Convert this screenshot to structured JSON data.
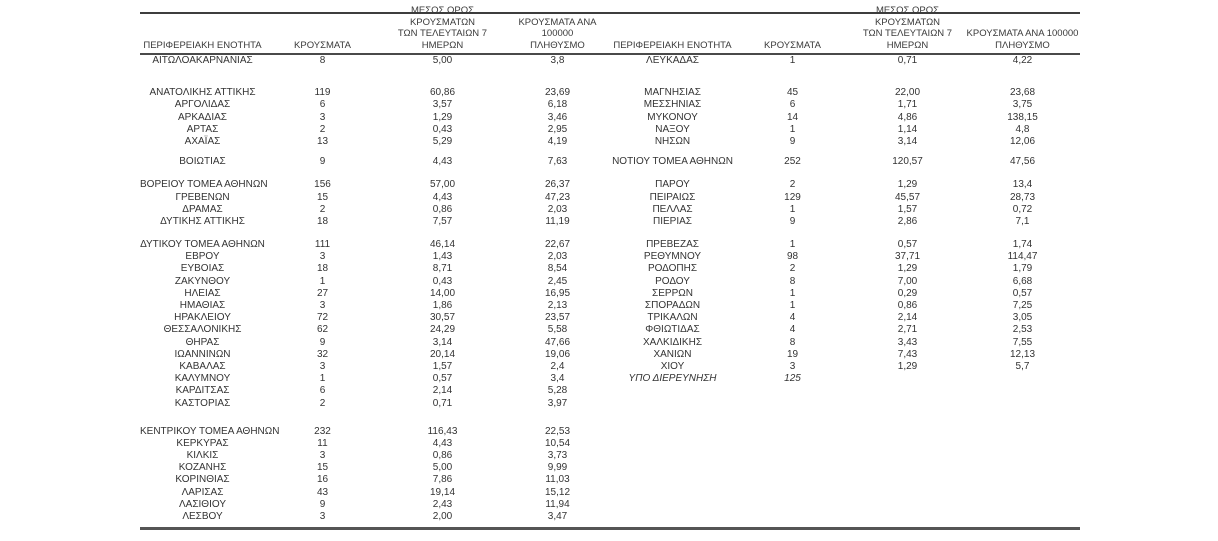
{
  "page": {
    "background": "#ffffff"
  },
  "table": {
    "colors": {
      "text": "#333333",
      "rule_top": "#3d3d3d",
      "rule_header": "#4a4a4a",
      "rule_bottom": "#555555"
    },
    "headers": {
      "region": "ΠΕΡΙΦΕΡΕΙΑΚΗ ΕΝΟΤΗΤΑ",
      "cases": "ΚΡΟΥΣΜΑΤΑ",
      "avg7": "ΜΕΣΟΣ ΟΡΟΣ ΚΡΟΥΣΜΑΤΩΝ\nΤΩΝ ΤΕΛΕΥΤΑΙΩΝ 7\nΗΜΕΡΩΝ",
      "per100k": "ΚΡΟΥΣΜΑΤΑ ΑΝΑ 100000\nΠΛΗΘΥΣΜΟ"
    },
    "rows": [
      {
        "left": [
          "ΑΙΤΩΛΟΑΚΑΡΝΑΝΙΑΣ",
          "8",
          "5,00",
          "3,8"
        ],
        "right": [
          "ΛΕΥΚΑΔΑΣ",
          "1",
          "0,71",
          "4,22"
        ]
      },
      {
        "gap": 20
      },
      {
        "left": [
          "ΑΝΑΤΟΛΙΚΗΣ ΑΤΤΙΚΗΣ",
          "119",
          "60,86",
          "23,69"
        ],
        "right": [
          "ΜΑΓΝΗΣΙΑΣ",
          "45",
          "22,00",
          "23,68"
        ]
      },
      {
        "left": [
          "ΑΡΓΟΛΙΔΑΣ",
          "6",
          "3,57",
          "6,18"
        ],
        "right": [
          "ΜΕΣΣΗΝΙΑΣ",
          "6",
          "1,71",
          "3,75"
        ]
      },
      {
        "left": [
          "ΑΡΚΑΔΙΑΣ",
          "3",
          "1,29",
          "3,46"
        ],
        "right": [
          "ΜΥΚΟΝΟΥ",
          "14",
          "4,86",
          "138,15"
        ]
      },
      {
        "left": [
          "ΑΡΤΑΣ",
          "2",
          "0,43",
          "2,95"
        ],
        "right": [
          "ΝΑΞΟΥ",
          "1",
          "1,14",
          "4,8"
        ]
      },
      {
        "left": [
          "ΑΧΑΪΑΣ",
          "13",
          "5,29",
          "4,19"
        ],
        "right": [
          "ΝΗΣΩΝ",
          "9",
          "3,14",
          "12,06"
        ]
      },
      {
        "gap": 8
      },
      {
        "left": [
          "ΒΟΙΩΤΙΑΣ",
          "9",
          "4,43",
          "7,63"
        ],
        "right": [
          "ΝΟΤΙΟΥ ΤΟΜΕΑ ΑΘΗΝΩΝ",
          "252",
          "120,57",
          "47,56"
        ]
      },
      {
        "gap": 11
      },
      {
        "left": [
          "ΒΟΡΕΙΟΥ ΤΟΜΕΑ ΑΘΗΝΩΝ",
          "156",
          "57,00",
          "26,37"
        ],
        "right": [
          "ΠΑΡΟΥ",
          "2",
          "1,29",
          "13,4"
        ]
      },
      {
        "left": [
          "ΓΡΕΒΕΝΩΝ",
          "15",
          "4,43",
          "47,23"
        ],
        "right": [
          "ΠΕΙΡΑΙΩΣ",
          "129",
          "45,57",
          "28,73"
        ]
      },
      {
        "left": [
          "ΔΡΑΜΑΣ",
          "2",
          "0,86",
          "2,03"
        ],
        "right": [
          "ΠΕΛΛΑΣ",
          "1",
          "1,57",
          "0,72"
        ]
      },
      {
        "left": [
          "ΔΥΤΙΚΗΣ ΑΤΤΙΚΗΣ",
          "18",
          "7,57",
          "11,19"
        ],
        "right": [
          "ΠΙΕΡΙΑΣ",
          "9",
          "2,86",
          "7,1"
        ]
      },
      {
        "gap": 11
      },
      {
        "left": [
          "ΔΥΤΙΚΟΥ ΤΟΜΕΑ ΑΘΗΝΩΝ",
          "111",
          "46,14",
          "22,67"
        ],
        "right": [
          "ΠΡΕΒΕΖΑΣ",
          "1",
          "0,57",
          "1,74"
        ]
      },
      {
        "left": [
          "ΕΒΡΟΥ",
          "3",
          "1,43",
          "2,03"
        ],
        "right": [
          "ΡΕΘΥΜΝΟΥ",
          "98",
          "37,71",
          "114,47"
        ]
      },
      {
        "left": [
          "ΕΥΒΟΙΑΣ",
          "18",
          "8,71",
          "8,54"
        ],
        "right": [
          "ΡΟΔΟΠΗΣ",
          "2",
          "1,29",
          "1,79"
        ]
      },
      {
        "left": [
          "ΖΑΚΥΝΘΟΥ",
          "1",
          "0,43",
          "2,45"
        ],
        "right": [
          "ΡΟΔΟΥ",
          "8",
          "7,00",
          "6,68"
        ]
      },
      {
        "left": [
          "ΗΛΕΙΑΣ",
          "27",
          "14,00",
          "16,95"
        ],
        "right": [
          "ΣΕΡΡΩΝ",
          "1",
          "0,29",
          "0,57"
        ]
      },
      {
        "left": [
          "ΗΜΑΘΙΑΣ",
          "3",
          "1,86",
          "2,13"
        ],
        "right": [
          "ΣΠΟΡΑΔΩΝ",
          "1",
          "0,86",
          "7,25"
        ]
      },
      {
        "left": [
          "ΗΡΑΚΛΕΙΟΥ",
          "72",
          "30,57",
          "23,57"
        ],
        "right": [
          "ΤΡΙΚΑΛΩΝ",
          "4",
          "2,14",
          "3,05"
        ]
      },
      {
        "left": [
          "ΘΕΣΣΑΛΟΝΙΚΗΣ",
          "62",
          "24,29",
          "5,58"
        ],
        "right": [
          "ΦΘΙΩΤΙΔΑΣ",
          "4",
          "2,71",
          "2,53"
        ]
      },
      {
        "left": [
          "ΘΗΡΑΣ",
          "9",
          "3,14",
          "47,66"
        ],
        "right": [
          "ΧΑΛΚΙΔΙΚΗΣ",
          "8",
          "3,43",
          "7,55"
        ]
      },
      {
        "left": [
          "ΙΩΑΝΝΙΝΩΝ",
          "32",
          "20,14",
          "19,06"
        ],
        "right": [
          "ΧΑΝΙΩΝ",
          "19",
          "7,43",
          "12,13"
        ]
      },
      {
        "left": [
          "ΚΑΒΑΛΑΣ",
          "3",
          "1,57",
          "2,4"
        ],
        "right": [
          "ΧΙΟΥ",
          "3",
          "1,29",
          "5,7"
        ]
      },
      {
        "left": [
          "ΚΑΛΥΜΝΟΥ",
          "1",
          "0,57",
          "3,4"
        ],
        "right": [
          "ΥΠΟ ΔΙΕΡΕΥΝΗΣΗ",
          "125",
          "",
          ""
        ],
        "right_italic": true
      },
      {
        "left": [
          "ΚΑΡΔΙΤΣΑΣ",
          "6",
          "2,14",
          "5,28"
        ]
      },
      {
        "left": [
          "ΚΑΣΤΟΡΙΑΣ",
          "2",
          "0,71",
          "3,97"
        ]
      },
      {
        "gap": 16
      },
      {
        "left": [
          "ΚΕΝΤΡΙΚΟΥ ΤΟΜΕΑ ΑΘΗΝΩΝ",
          "232",
          "116,43",
          "22,53"
        ]
      },
      {
        "left": [
          "ΚΕΡΚΥΡΑΣ",
          "11",
          "4,43",
          "10,54"
        ]
      },
      {
        "left": [
          "ΚΙΛΚΙΣ",
          "3",
          "0,86",
          "3,73"
        ]
      },
      {
        "left": [
          "ΚΟΖΑΝΗΣ",
          "15",
          "5,00",
          "9,99"
        ]
      },
      {
        "left": [
          "ΚΟΡΙΝΘΙΑΣ",
          "16",
          "7,86",
          "11,03"
        ]
      },
      {
        "left": [
          "ΛΑΡΙΣΑΣ",
          "43",
          "19,14",
          "15,12"
        ]
      },
      {
        "left": [
          "ΛΑΣΙΘΙΟΥ",
          "9",
          "2,43",
          "11,94"
        ]
      },
      {
        "left": [
          "ΛΕΣΒΟΥ",
          "3",
          "2,00",
          "3,47"
        ]
      },
      {
        "gap": 4
      }
    ]
  }
}
